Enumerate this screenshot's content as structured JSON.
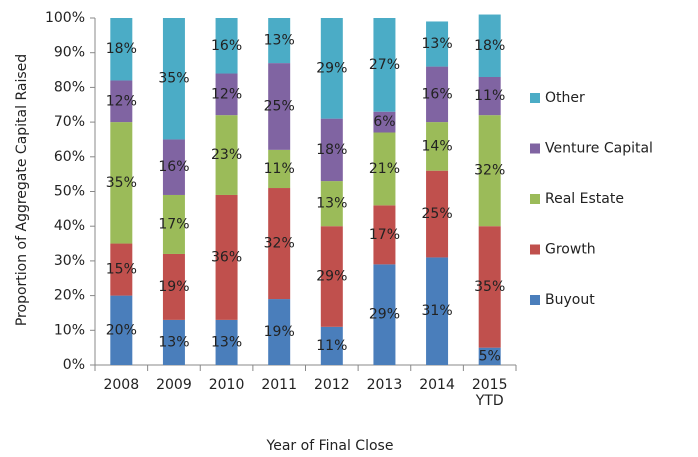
{
  "chart_data": {
    "type": "stacked_bar",
    "x_label": "Year of Final Close",
    "y_label": "Proportion of Aggregate Capital Raised",
    "categories": [
      "2008",
      "2009",
      "2010",
      "2011",
      "2012",
      "2013",
      "2014",
      "2015 YTD"
    ],
    "series": [
      {
        "name": "Buyout",
        "color": "#4a7ebb",
        "values": [
          20,
          13,
          13,
          19,
          11,
          29,
          31,
          5
        ],
        "value_labels": [
          "20%",
          "13%",
          "13%",
          "19%",
          "11%",
          "29%",
          "31%",
          "5%"
        ]
      },
      {
        "name": "Growth",
        "color": "#c0504d",
        "values": [
          15,
          19,
          36,
          32,
          29,
          17,
          25,
          35
        ],
        "value_labels": [
          "15%",
          "19%",
          "36%",
          "32%",
          "29%",
          "17%",
          "25%",
          "35%"
        ]
      },
      {
        "name": "Real Estate",
        "color": "#9bbb59",
        "values": [
          35,
          17,
          23,
          11,
          13,
          21,
          14,
          32
        ],
        "value_labels": [
          "35%",
          "17%",
          "23%",
          "11%",
          "13%",
          "21%",
          "14%",
          "32%"
        ]
      },
      {
        "name": "Venture Capital",
        "color": "#8064a2",
        "values": [
          12,
          16,
          12,
          25,
          18,
          6,
          16,
          11
        ],
        "value_labels": [
          "12%",
          "16%",
          "12%",
          "25%",
          "18%",
          "6%",
          "16%",
          "11%"
        ]
      },
      {
        "name": "Other",
        "color": "#4bacc6",
        "values": [
          18,
          35,
          16,
          13,
          29,
          27,
          13,
          18
        ],
        "value_labels": [
          "18%",
          "35%",
          "16%",
          "13%",
          "29%",
          "27%",
          "13%",
          "18%"
        ]
      }
    ],
    "ylim": [
      0,
      100
    ],
    "yticks": [
      {
        "value": 0,
        "label": "0%"
      },
      {
        "value": 10,
        "label": "10%"
      },
      {
        "value": 20,
        "label": "20%"
      },
      {
        "value": 30,
        "label": "30%"
      },
      {
        "value": 40,
        "label": "40%"
      },
      {
        "value": 50,
        "label": "50%"
      },
      {
        "value": 60,
        "label": "60%"
      },
      {
        "value": 70,
        "label": "70%"
      },
      {
        "value": 80,
        "label": "80%"
      },
      {
        "value": 90,
        "label": "90%"
      },
      {
        "value": 100,
        "label": "100%"
      }
    ],
    "legend": "right"
  }
}
